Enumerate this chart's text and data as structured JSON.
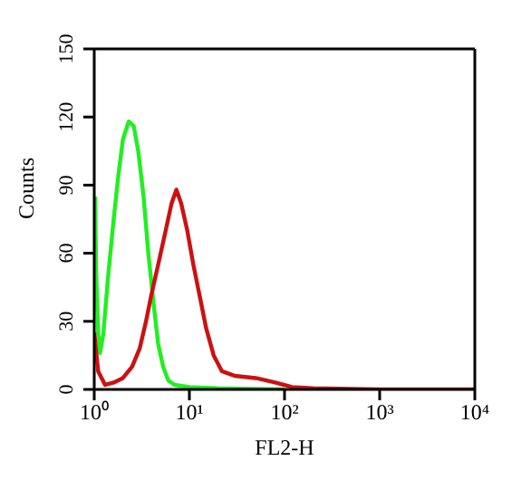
{
  "chart_data": {
    "type": "line",
    "xlabel": "FL2-H",
    "ylabel": "Counts",
    "log": "x",
    "xlim": [
      1,
      10000
    ],
    "ylim": [
      0,
      150
    ],
    "xticks": [
      {
        "value": 1,
        "label": "10⁰"
      },
      {
        "value": 10,
        "label": "10¹"
      },
      {
        "value": 100,
        "label": "10²"
      },
      {
        "value": 1000,
        "label": "10³"
      },
      {
        "value": 10000,
        "label": "10⁴"
      }
    ],
    "yticks": [
      0,
      30,
      60,
      90,
      120,
      150
    ],
    "grid": false,
    "legend": false,
    "marker": "none",
    "line_style": "solid",
    "series": [
      {
        "color": "#22ee22",
        "x": [
          1.02,
          1.05,
          1.1,
          1.15,
          1.25,
          1.4,
          1.6,
          1.8,
          2.0,
          2.3,
          2.6,
          2.9,
          3.3,
          3.7,
          4.2,
          4.7,
          5.3,
          6,
          7,
          10,
          20,
          100
        ],
        "values": [
          85,
          50,
          25,
          16,
          25,
          50,
          75,
          95,
          110,
          118,
          116,
          105,
          85,
          60,
          38,
          20,
          10,
          4,
          2,
          1,
          0.5,
          0
        ]
      },
      {
        "color": "#cc1111",
        "x": [
          1.0,
          1.1,
          1.3,
          1.6,
          2.0,
          2.5,
          3,
          3.5,
          4,
          4.7,
          5.5,
          6.5,
          7.3,
          8.2,
          9.5,
          11,
          13,
          15,
          18,
          22,
          30,
          50,
          80,
          120,
          200,
          1000,
          10000
        ],
        "values": [
          25,
          8,
          2,
          3,
          5,
          10,
          18,
          30,
          42,
          55,
          68,
          82,
          88,
          82,
          70,
          55,
          40,
          27,
          15,
          8,
          6,
          5,
          3,
          1,
          0.5,
          0,
          0
        ]
      }
    ]
  }
}
